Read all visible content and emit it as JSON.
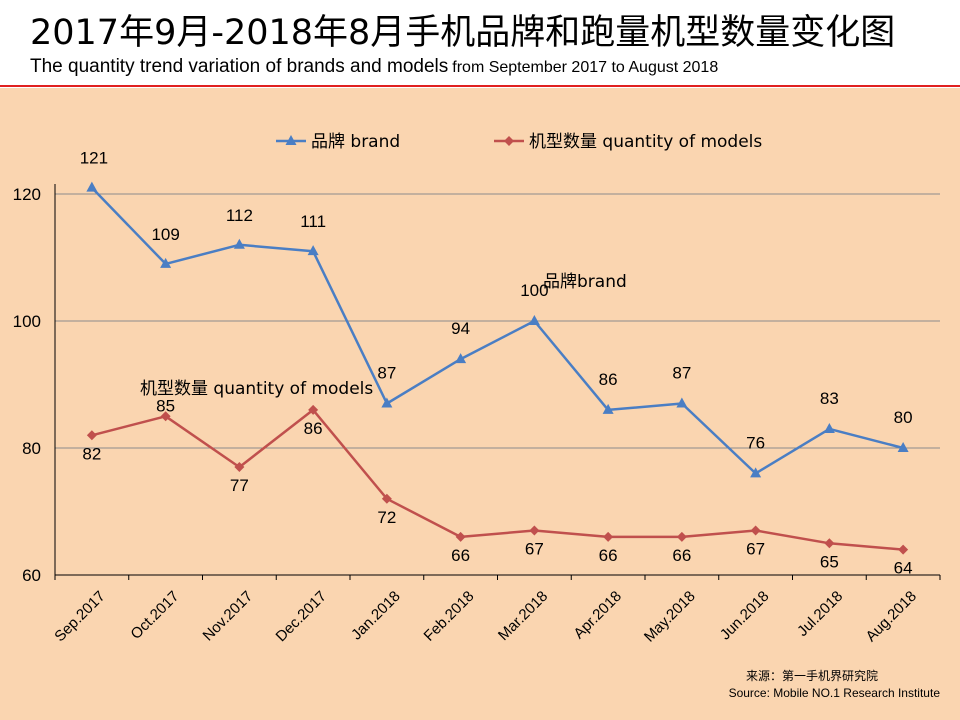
{
  "header": {
    "title_cn": "2017年9月-2018年8月手机品牌和跑量机型数量变化图",
    "title_en": "The quantity trend variation of brands and models",
    "title_en_range": "from  September 2017 to August 2018"
  },
  "source": {
    "cn": "来源：第一手机界研究院",
    "en": "Source: Mobile NO.1 Research Institute"
  },
  "colors": {
    "background": "#FAD5B0",
    "brand": "#4A7EC4",
    "models": "#C0504D",
    "grid": "#8C8C8C",
    "rule": "#E02020"
  },
  "chart_data": {
    "type": "line",
    "title": "2017年9月-2018年8月手机品牌和跑量机型数量变化图",
    "xlabel": "",
    "ylabel": "",
    "ylim": [
      60,
      120
    ],
    "yticks": [
      60,
      80,
      100,
      120
    ],
    "grid": true,
    "legend_position": "top",
    "categories": [
      "Sep.2017",
      "Oct.2017",
      "Nov.2017",
      "Dec.2017",
      "Jan.2018",
      "Feb.2018",
      "Mar.2018",
      "Apr.2018",
      "May.2018",
      "Jun.2018",
      "Jul.2018",
      "Aug.2018"
    ],
    "series": [
      {
        "name": "品牌 brand",
        "annotation": "品牌brand",
        "marker": "triangle",
        "values": [
          121,
          109,
          112,
          111,
          87,
          94,
          100,
          86,
          87,
          76,
          83,
          80
        ],
        "labels": [
          "121",
          "109",
          "112",
          "111",
          "87",
          "94",
          "100",
          "86",
          "87",
          "76",
          "83",
          "80"
        ]
      },
      {
        "name": "机型数量 quantity of models",
        "annotation": "机型数量 quantity of models",
        "marker": "diamond",
        "values": [
          82,
          85,
          77,
          86,
          72,
          66,
          67,
          66,
          66,
          67,
          65,
          64
        ],
        "labels": [
          "82",
          "85",
          "77",
          "86",
          "72",
          "66",
          "67",
          "66",
          "66",
          "67",
          "65",
          "64"
        ]
      }
    ]
  }
}
